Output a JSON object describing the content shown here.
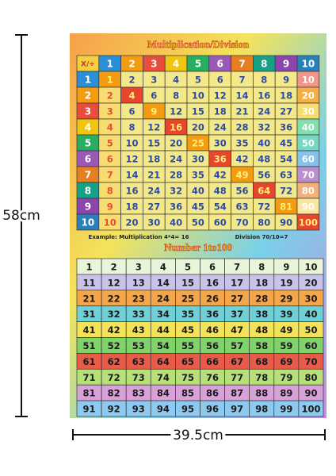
{
  "dimensions": {
    "height": "58cm",
    "width": "39.5cm"
  },
  "poster": {
    "title": "Multiplication/Division",
    "multiplication_table": {
      "corner": "X/÷",
      "columns": [
        1,
        2,
        3,
        4,
        5,
        6,
        7,
        8,
        9,
        10
      ],
      "rows": [
        {
          "label": 1,
          "cells": [
            1,
            2,
            3,
            4,
            5,
            6,
            7,
            8,
            9,
            10
          ]
        },
        {
          "label": 2,
          "cells": [
            2,
            4,
            6,
            8,
            10,
            12,
            14,
            16,
            18,
            20
          ]
        },
        {
          "label": 3,
          "cells": [
            3,
            6,
            9,
            12,
            15,
            18,
            21,
            24,
            27,
            30
          ]
        },
        {
          "label": 4,
          "cells": [
            4,
            8,
            12,
            16,
            20,
            24,
            28,
            32,
            36,
            40
          ]
        },
        {
          "label": 5,
          "cells": [
            5,
            10,
            15,
            20,
            25,
            30,
            35,
            40,
            45,
            50
          ]
        },
        {
          "label": 6,
          "cells": [
            6,
            12,
            18,
            24,
            30,
            36,
            42,
            48,
            54,
            60
          ]
        },
        {
          "label": 7,
          "cells": [
            7,
            14,
            21,
            28,
            35,
            42,
            49,
            56,
            63,
            70
          ]
        },
        {
          "label": 8,
          "cells": [
            8,
            16,
            24,
            32,
            40,
            48,
            56,
            64,
            72,
            80
          ]
        },
        {
          "label": 9,
          "cells": [
            9,
            18,
            27,
            36,
            45,
            54,
            63,
            72,
            81,
            90
          ]
        },
        {
          "label": 10,
          "cells": [
            10,
            20,
            30,
            40,
            50,
            60,
            70,
            80,
            90,
            100
          ]
        }
      ]
    },
    "example_multiplication": "Example: Multiplication 4*4= 16",
    "example_division": "Division 70/10=7",
    "number_grid": {
      "title": "Number 1to100",
      "rows": [
        [
          1,
          2,
          3,
          4,
          5,
          6,
          7,
          8,
          9,
          10
        ],
        [
          11,
          12,
          13,
          14,
          15,
          16,
          17,
          18,
          19,
          20
        ],
        [
          21,
          22,
          23,
          24,
          25,
          26,
          27,
          28,
          29,
          30
        ],
        [
          31,
          32,
          33,
          34,
          35,
          36,
          37,
          38,
          39,
          40
        ],
        [
          41,
          42,
          43,
          44,
          45,
          46,
          47,
          48,
          49,
          50
        ],
        [
          51,
          52,
          53,
          54,
          55,
          56,
          57,
          58,
          59,
          60
        ],
        [
          61,
          62,
          63,
          64,
          65,
          66,
          67,
          68,
          69,
          70
        ],
        [
          71,
          72,
          73,
          74,
          75,
          76,
          77,
          78,
          79,
          80
        ],
        [
          81,
          82,
          83,
          84,
          85,
          86,
          87,
          88,
          89,
          90
        ],
        [
          91,
          92,
          93,
          94,
          95,
          96,
          97,
          98,
          99,
          100
        ]
      ]
    }
  }
}
